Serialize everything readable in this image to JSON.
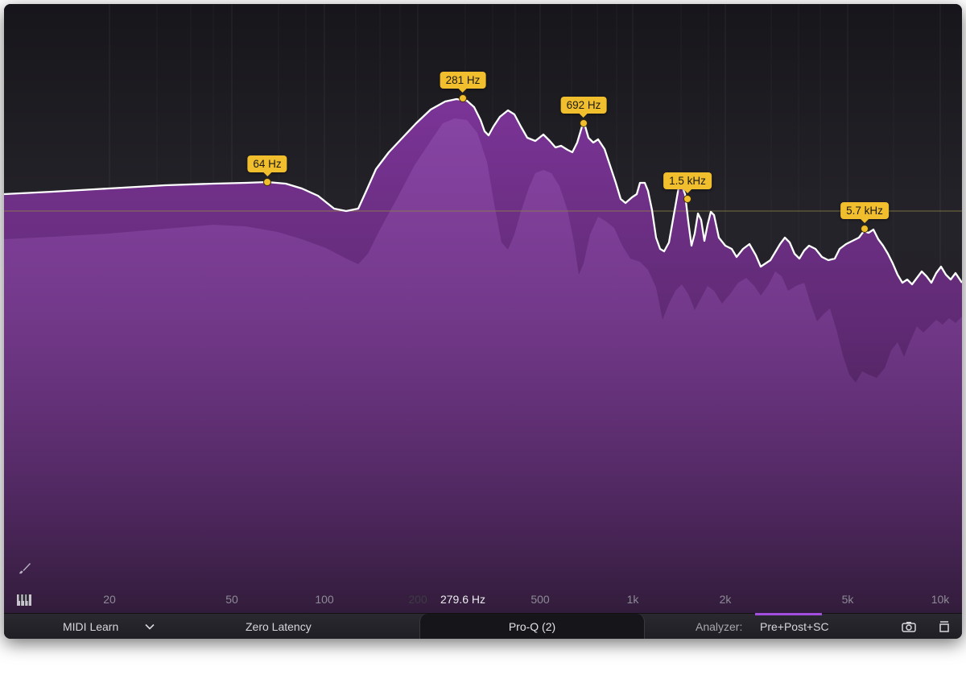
{
  "eq": {
    "x_axis_ticks": [
      "20",
      "50",
      "100",
      "200",
      "500",
      "1k",
      "2k",
      "5k",
      "10k"
    ],
    "cursor_frequency": "279.6 Hz",
    "band_labels": [
      "64 Hz",
      "281 Hz",
      "692 Hz",
      "1.5 kHz",
      "5.7 kHz"
    ]
  },
  "statusbar": {
    "midi_learn": "MIDI Learn",
    "latency_mode": "Zero Latency",
    "preset_name": "Pro-Q (2)",
    "analyzer_label": "Analyzer:",
    "analyzer_value": "Pre+Post+SC"
  },
  "icons": [
    "brush-icon",
    "piano-keys-icon",
    "chevron-down-icon",
    "camera-icon",
    "window-size-icon"
  ],
  "colors": {
    "spectrum_fill": "#6e2d84",
    "band_tag": "#f1be2d",
    "eq_curve": "#ffffff",
    "analyzer_accent": "#a24fe0",
    "background": "#1b1a1f"
  }
}
